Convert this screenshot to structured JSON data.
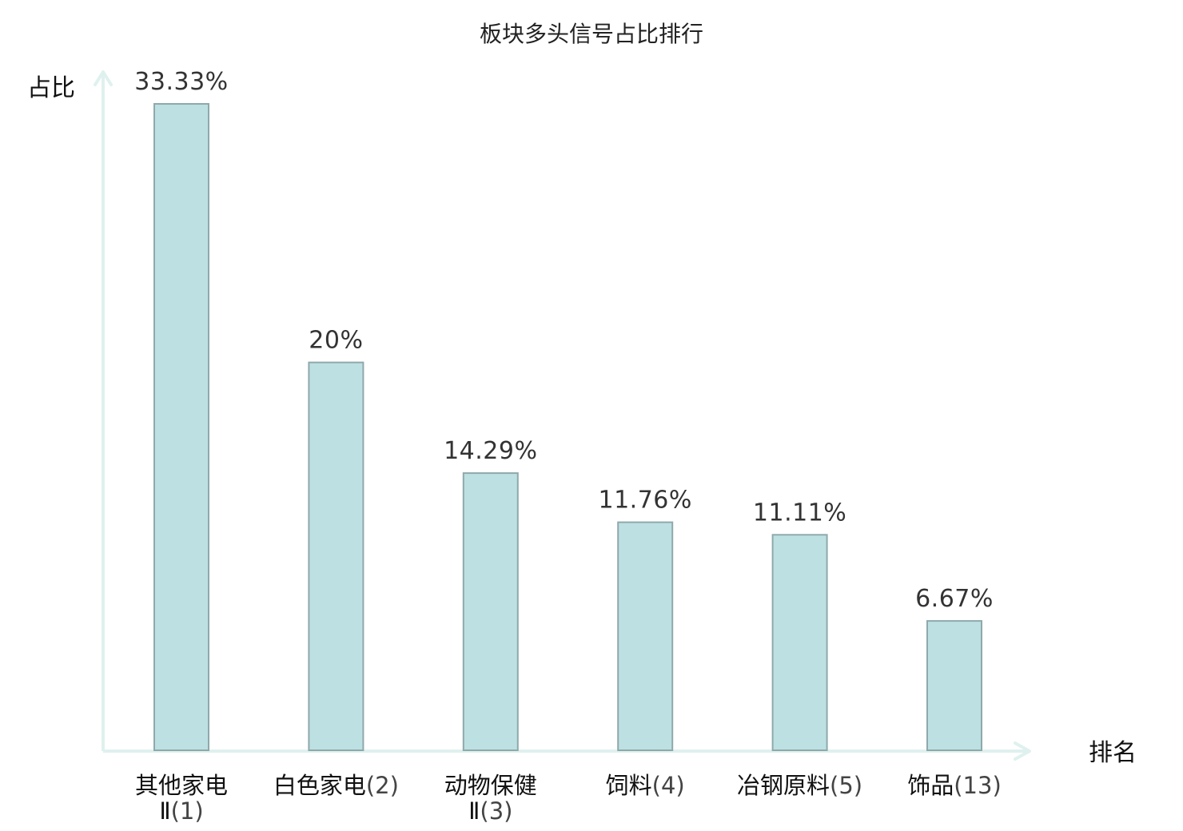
{
  "chart_data": {
    "type": "bar",
    "title": "板块多头信号占比排行",
    "ylabel": "占比",
    "xlabel": "排名",
    "ylim": [
      0,
      35
    ],
    "grid": false,
    "categories": [
      {
        "name": "其他家电",
        "name_line2": "Ⅱ",
        "rank": "(1)",
        "value": 33.33,
        "label": "33.33%",
        "highlight": false
      },
      {
        "name": "白色家电",
        "name_line2": "",
        "rank": "(2)",
        "value": 20,
        "label": "20%",
        "highlight": false
      },
      {
        "name": "动物保健",
        "name_line2": "Ⅱ",
        "rank": "(3)",
        "value": 14.29,
        "label": "14.29%",
        "highlight": false
      },
      {
        "name": "饲料",
        "name_line2": "",
        "rank": "(4)",
        "value": 11.76,
        "label": "11.76%",
        "highlight": false
      },
      {
        "name": "冶钢原料",
        "name_line2": "",
        "rank": "(5)",
        "value": 11.11,
        "label": "11.11%",
        "highlight": false
      },
      {
        "name": "饰品",
        "name_line2": "",
        "rank": "(13)",
        "value": 6.67,
        "label": "6.67%",
        "highlight": true
      }
    ],
    "colors": {
      "bar_fill": "#bde0e2",
      "bar_stroke": "#8fa9ab",
      "axis": "#dff1ee",
      "highlight_text": "#dd1111",
      "normal_text": "#111111",
      "rank_text": "#444444",
      "value_text": "#333333"
    }
  }
}
